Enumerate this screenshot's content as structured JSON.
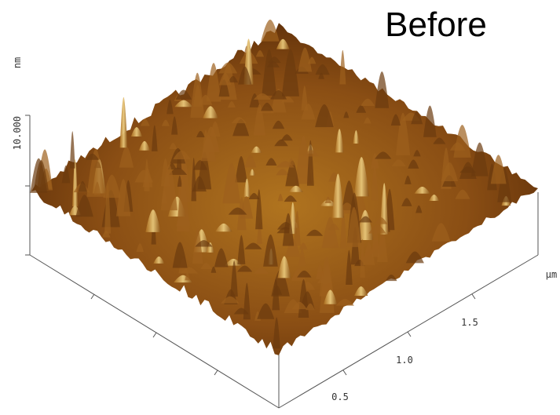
{
  "title": "Before",
  "z_axis": {
    "unit": "nm",
    "tick": "10.000"
  },
  "x_axis": {
    "unit": "µm",
    "ticks": [
      "0.5",
      "1.0",
      "1.5"
    ]
  }
}
